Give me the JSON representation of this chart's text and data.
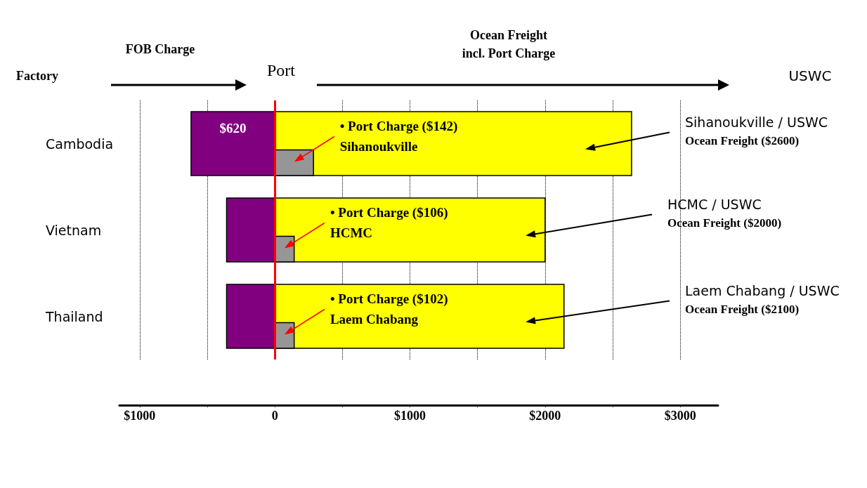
{
  "chart_data": {
    "type": "bar",
    "orientation": "horizontal",
    "categories": [
      "Cambodia",
      "Vietnam",
      "Thailand"
    ],
    "series": [
      {
        "color": "#800080",
        "base": [
          -620,
          -357,
          -357
        ],
        "values": [
          620,
          357,
          357
        ],
        "value_labels": [
          "$620",
          null,
          null
        ]
      },
      {
        "color": "#ffff00",
        "base": [
          0,
          0,
          0
        ],
        "values": [
          2640,
          2000,
          2140
        ]
      },
      {
        "color": "#969696",
        "base": [
          0,
          0,
          0
        ],
        "values": [
          286,
          143,
          143
        ]
      }
    ],
    "xlim": [
      -1150,
      3280
    ],
    "xticks": [
      {
        "value": -1000,
        "label": "$1000"
      },
      {
        "value": -500,
        "label": null
      },
      0,
      {
        "value": 500,
        "label": null
      },
      {
        "value": 1000,
        "label": "$1000"
      },
      {
        "value": 1500,
        "label": null
      },
      {
        "value": 2000,
        "label": "$2000"
      },
      {
        "value": 2500,
        "label": null
      },
      {
        "value": 3000,
        "label": "$3000"
      }
    ],
    "grid": "x",
    "ref_lines": [
      {
        "axis": "x",
        "value": 0,
        "color": "#ff0000"
      }
    ],
    "annotations": [
      "Factory",
      "FOB Charge",
      "Port",
      "Ocean Freight\nincl. Port Charge",
      "USWC",
      "• Port Charge ($142)\nSihanoukville",
      "• Port Charge ($106)\nHCMC",
      "• Port Charge ($102)\nLaem Chabang",
      "Sihanoukville / USWC\nOcean Freight ($2600)",
      "HCMC / USWC\nOcean Freight ($2000)",
      "Laem Chabang / USWC\nOcean Freight ($2100)"
    ]
  }
}
